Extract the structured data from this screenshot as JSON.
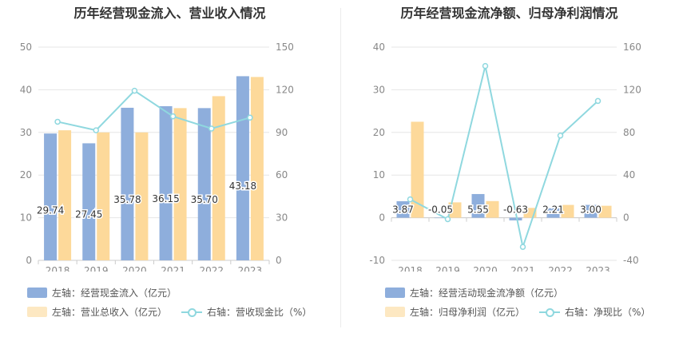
{
  "chart_data": [
    {
      "type": "bar",
      "title": "历年经营现金流入、营业收入情况",
      "categories": [
        "2018",
        "2019",
        "2020",
        "2021",
        "2022",
        "2023"
      ],
      "ylim_left": [
        0,
        50
      ],
      "ylim_right": [
        0,
        150
      ],
      "left_ticks": [
        "0",
        "10",
        "20",
        "30",
        "40",
        "50"
      ],
      "right_ticks": [
        "0",
        "30",
        "60",
        "90",
        "120",
        "150"
      ],
      "series": [
        {
          "name": "左轴：经营现金流入（亿元）",
          "kind": "bar",
          "axis": "left",
          "color": "#8eaedc",
          "values": [
            29.74,
            27.45,
            35.78,
            36.15,
            35.7,
            43.18
          ],
          "labels": [
            "29.74",
            "27.45",
            "35.78",
            "36.15",
            "35.70",
            "43.18"
          ]
        },
        {
          "name": "左轴：营业总收入（亿元）",
          "kind": "bar",
          "axis": "left",
          "color": "#fdd99a",
          "values": [
            30.5,
            30.0,
            30.0,
            35.7,
            38.5,
            43.0
          ]
        },
        {
          "name": "右轴：营收现金比（%）",
          "kind": "line",
          "axis": "right",
          "color": "#8fd8df",
          "values": [
            97.5,
            91.5,
            119.3,
            101.3,
            92.7,
            100.4
          ]
        }
      ],
      "grid": true,
      "legend_position": "bottom"
    },
    {
      "type": "bar",
      "title": "历年经营现金流净额、归母净利润情况",
      "categories": [
        "2018",
        "2019",
        "2020",
        "2021",
        "2022",
        "2023"
      ],
      "ylim_left": [
        -10,
        40
      ],
      "ylim_right": [
        -40,
        160
      ],
      "left_ticks": [
        "-10",
        "0",
        "10",
        "20",
        "30",
        "40"
      ],
      "right_ticks": [
        "-40",
        "0",
        "40",
        "80",
        "120",
        "160"
      ],
      "series": [
        {
          "name": "左轴：经营活动现金流净额（亿元）",
          "kind": "bar",
          "axis": "left",
          "color": "#8eaedc",
          "values": [
            3.87,
            -0.05,
            5.55,
            -0.63,
            2.21,
            3.0
          ],
          "labels": [
            "3.87",
            "-0.05",
            "5.55",
            "-0.63",
            "2.21",
            "3.00"
          ]
        },
        {
          "name": "左轴：归母净利润（亿元）",
          "kind": "bar",
          "axis": "left",
          "color": "#fdd99a",
          "values": [
            22.5,
            3.6,
            3.9,
            2.3,
            3.0,
            2.8
          ]
        },
        {
          "name": "右轴：净现比（%）",
          "kind": "line",
          "axis": "right",
          "color": "#8fd8df",
          "values": [
            17.2,
            -1.4,
            142.3,
            -27.4,
            77.0,
            109.5
          ]
        }
      ],
      "grid": true,
      "legend_position": "bottom"
    }
  ]
}
